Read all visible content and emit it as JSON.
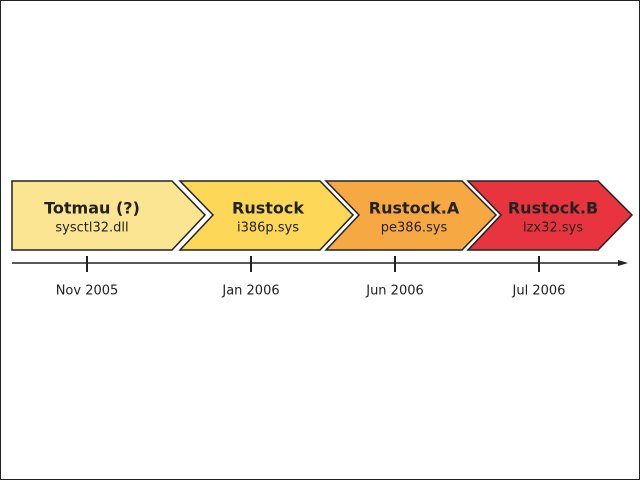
{
  "stages": [
    {
      "name": "Totmau (?)",
      "file": "sysctl32.dll",
      "date": "Nov 2005"
    },
    {
      "name": "Rustock",
      "file": "i386p.sys",
      "date": "Jan 2006"
    },
    {
      "name": "Rustock.A",
      "file": "pe386.sys",
      "date": "Jun 2006"
    },
    {
      "name": "Rustock.B",
      "file": "lzx32.sys",
      "date": "Jul 2006"
    }
  ]
}
